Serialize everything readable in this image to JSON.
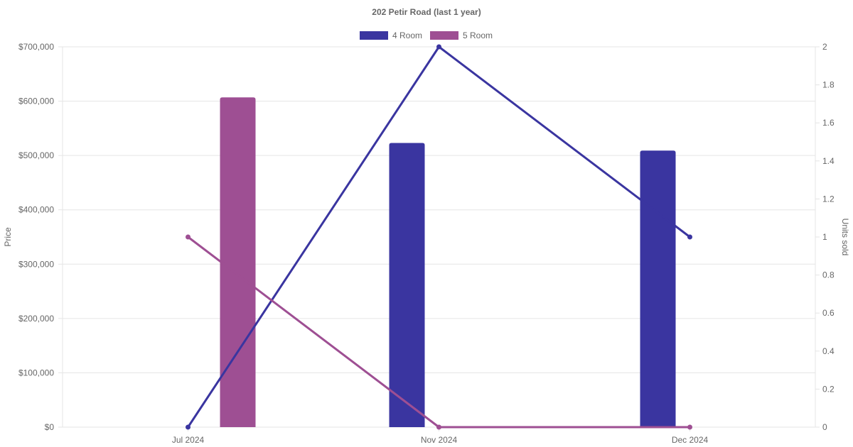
{
  "chart_data": {
    "type": "bar+line",
    "title": "202 Petir Road (last 1 year)",
    "categories": [
      "Jul 2024",
      "Nov 2024",
      "Dec 2024"
    ],
    "legend": {
      "placement": "top-center",
      "items": [
        {
          "name": "4 Room",
          "color": "#3a35a0"
        },
        {
          "name": "5 Room",
          "color": "#9e4f93"
        }
      ]
    },
    "y_left": {
      "label": "Price",
      "min": 0,
      "max": 700000,
      "ticks": [
        0,
        100000,
        200000,
        300000,
        400000,
        500000,
        600000,
        700000
      ],
      "tick_labels": [
        "$0",
        "$100,000",
        "$200,000",
        "$300,000",
        "$400,000",
        "$500,000",
        "$600,000",
        "$700,000"
      ]
    },
    "y_right": {
      "label": "Units sold",
      "min": 0,
      "max": 2,
      "ticks": [
        0,
        0.2,
        0.4,
        0.6,
        0.8,
        1,
        1.2,
        1.4,
        1.6,
        1.8,
        2
      ],
      "tick_labels": [
        "0",
        "0.2",
        "0.4",
        "0.6",
        "0.8",
        "1",
        "1.2",
        "1.4",
        "1.6",
        "1.8",
        "2"
      ]
    },
    "grid": true,
    "bar_series": [
      {
        "name": "4 Room",
        "color": "#3a35a0",
        "axis": "left",
        "values": [
          null,
          523000,
          509000
        ]
      },
      {
        "name": "5 Room",
        "color": "#9e4f93",
        "axis": "left",
        "values": [
          607000,
          null,
          null
        ]
      }
    ],
    "line_series": [
      {
        "name": "4 Room",
        "color": "#3a35a0",
        "axis": "right",
        "values": [
          0,
          2,
          1
        ]
      },
      {
        "name": "5 Room",
        "color": "#9e4f93",
        "axis": "right",
        "values": [
          1,
          0,
          0
        ]
      }
    ]
  }
}
